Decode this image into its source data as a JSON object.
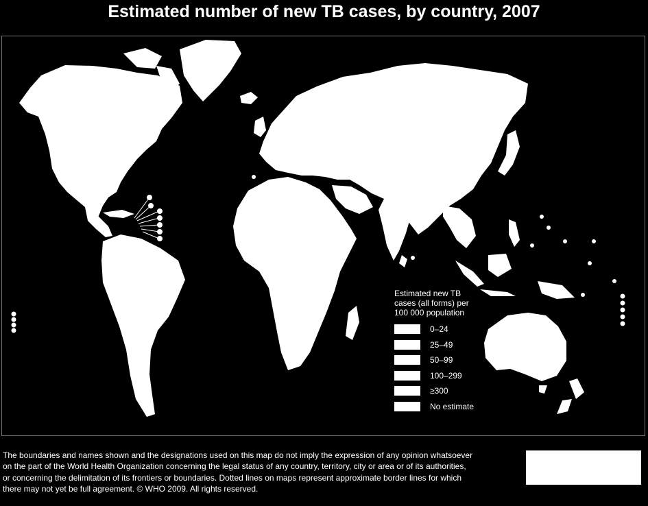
{
  "title": "Estimated number of new TB cases, by country,  2007",
  "legend": {
    "title_lines": [
      "Estimated new TB",
      "cases (all forms) per",
      "100 000 population"
    ],
    "items": [
      {
        "label": "0–24"
      },
      {
        "label": "25–49"
      },
      {
        "label": "50–99"
      },
      {
        "label": "100–299"
      },
      {
        "label": "≥300"
      },
      {
        "label": "No estimate"
      }
    ]
  },
  "disclaimer_lines": [
    "The boundaries and names shown and the designations used on this map do not imply the expression of any opinion whatsoever",
    "on the part of the World Health Organization concerning the legal status of any country, territory, city or area or of its authorities,",
    "or concerning the delimitation of its frontiers or boundaries.  Dotted lines on maps represent approximate border lines for which",
    "there may not yet be full agreement. © WHO 2009. All rights reserved."
  ],
  "colors": {
    "land": "#ffffff",
    "water": "#000000",
    "text": "#ffffff"
  }
}
